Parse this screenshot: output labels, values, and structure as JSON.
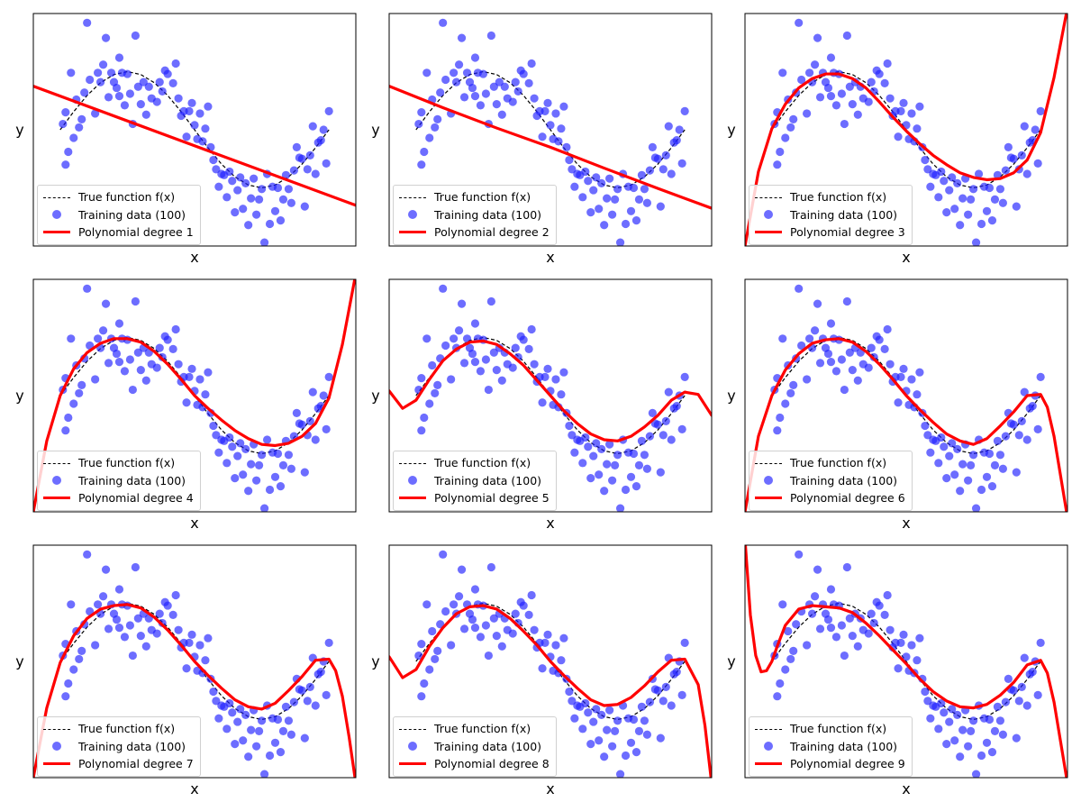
{
  "chart_data": [
    {
      "type": "scatter",
      "degree": 1,
      "title": "",
      "xlabel": "x",
      "ylabel": "y",
      "legend": {
        "true_function": "True function f(x)",
        "training_data": "Training data (100)",
        "fit": "Polynomial degree 1"
      },
      "fit_curve": {
        "x": [
          -0.1,
          1.1
        ],
        "y": [
          0.75,
          -1.3
        ]
      }
    },
    {
      "type": "scatter",
      "degree": 2,
      "title": "",
      "xlabel": "x",
      "ylabel": "y",
      "legend": {
        "true_function": "True function f(x)",
        "training_data": "Training data (100)",
        "fit": "Polynomial degree 2"
      },
      "fit_curve": {
        "x": [
          -0.1,
          0.1,
          0.3,
          0.5,
          0.7,
          0.9,
          1.1
        ],
        "y": [
          0.75,
          0.38,
          0.03,
          -0.3,
          -0.66,
          -1.01,
          -1.35
        ]
      }
    },
    {
      "type": "scatter",
      "degree": 3,
      "title": "",
      "xlabel": "x",
      "ylabel": "y",
      "legend": {
        "true_function": "True function f(x)",
        "training_data": "Training data (100)",
        "fit": "Polynomial degree 3"
      },
      "fit_curve": {
        "x": [
          -0.1,
          -0.05,
          0,
          0.05,
          0.1,
          0.15,
          0.2,
          0.25,
          0.3,
          0.35,
          0.4,
          0.45,
          0.5,
          0.55,
          0.6,
          0.65,
          0.7,
          0.75,
          0.8,
          0.85,
          0.9,
          0.95,
          1.0,
          1.05,
          1.1
        ],
        "y": [
          -2.0,
          -0.72,
          0.02,
          0.44,
          0.72,
          0.88,
          0.96,
          0.96,
          0.88,
          0.72,
          0.48,
          0.22,
          -0.02,
          -0.24,
          -0.44,
          -0.6,
          -0.74,
          -0.82,
          -0.86,
          -0.84,
          -0.74,
          -0.52,
          -0.05,
          0.9,
          2.1
        ]
      }
    },
    {
      "type": "scatter",
      "degree": 4,
      "title": "",
      "xlabel": "x",
      "ylabel": "y",
      "legend": {
        "true_function": "True function f(x)",
        "training_data": "Training data (100)",
        "fit": "Polynomial degree 4"
      },
      "fit_curve": {
        "x": [
          -0.1,
          -0.05,
          0,
          0.05,
          0.1,
          0.15,
          0.2,
          0.25,
          0.3,
          0.35,
          0.4,
          0.45,
          0.5,
          0.55,
          0.6,
          0.65,
          0.7,
          0.75,
          0.8,
          0.85,
          0.9,
          0.95,
          1.0,
          1.05,
          1.1
        ],
        "y": [
          -2.0,
          -0.78,
          0.0,
          0.46,
          0.74,
          0.9,
          0.98,
          0.98,
          0.92,
          0.76,
          0.54,
          0.28,
          0.0,
          -0.22,
          -0.42,
          -0.6,
          -0.74,
          -0.84,
          -0.86,
          -0.82,
          -0.7,
          -0.48,
          -0.04,
          0.88,
          2.1
        ]
      }
    },
    {
      "type": "scatter",
      "degree": 5,
      "title": "",
      "xlabel": "x",
      "ylabel": "y",
      "legend": {
        "true_function": "True function f(x)",
        "training_data": "Training data (100)",
        "fit": "Polynomial degree 5"
      },
      "fit_curve": {
        "x": [
          -0.1,
          -0.05,
          0,
          0.05,
          0.1,
          0.15,
          0.2,
          0.25,
          0.3,
          0.35,
          0.4,
          0.45,
          0.5,
          0.55,
          0.6,
          0.65,
          0.7,
          0.75,
          0.8,
          0.85,
          0.9,
          0.95,
          1.0,
          1.05,
          1.1
        ],
        "y": [
          0.08,
          -0.22,
          -0.08,
          0.28,
          0.6,
          0.8,
          0.92,
          0.94,
          0.88,
          0.72,
          0.52,
          0.26,
          0.0,
          -0.26,
          -0.48,
          -0.66,
          -0.76,
          -0.78,
          -0.7,
          -0.54,
          -0.34,
          -0.08,
          0.06,
          0.02,
          -0.34
        ]
      }
    },
    {
      "type": "scatter",
      "degree": 6,
      "title": "",
      "xlabel": "x",
      "ylabel": "y",
      "legend": {
        "true_function": "True function f(x)",
        "training_data": "Training data (100)",
        "fit": "Polynomial degree 6"
      },
      "fit_curve": {
        "x": [
          -0.1,
          -0.05,
          0,
          0.05,
          0.1,
          0.15,
          0.2,
          0.25,
          0.3,
          0.35,
          0.4,
          0.45,
          0.5,
          0.55,
          0.6,
          0.65,
          0.7,
          0.75,
          0.8,
          0.85,
          0.9,
          0.95,
          1.0,
          1.025,
          1.05,
          1.075,
          1.1
        ],
        "y": [
          -2.0,
          -0.7,
          0.0,
          0.44,
          0.72,
          0.9,
          0.96,
          0.98,
          0.92,
          0.76,
          0.54,
          0.28,
          0.0,
          -0.24,
          -0.46,
          -0.66,
          -0.78,
          -0.84,
          -0.74,
          -0.52,
          -0.28,
          0.0,
          0.02,
          -0.2,
          -0.7,
          -1.4,
          -2.1
        ]
      }
    },
    {
      "type": "scatter",
      "degree": 7,
      "title": "",
      "xlabel": "x",
      "ylabel": "y",
      "legend": {
        "true_function": "True function f(x)",
        "training_data": "Training data (100)",
        "fit": "Polynomial degree 7"
      },
      "fit_curve": {
        "x": [
          -0.1,
          -0.05,
          0,
          0.05,
          0.1,
          0.15,
          0.2,
          0.25,
          0.3,
          0.35,
          0.4,
          0.45,
          0.5,
          0.55,
          0.6,
          0.65,
          0.7,
          0.75,
          0.8,
          0.85,
          0.9,
          0.95,
          1.0,
          1.025,
          1.05,
          1.075,
          1.1
        ],
        "y": [
          -2.0,
          -0.8,
          -0.02,
          0.44,
          0.74,
          0.9,
          0.96,
          0.98,
          0.92,
          0.76,
          0.54,
          0.28,
          0.0,
          -0.24,
          -0.46,
          -0.66,
          -0.78,
          -0.82,
          -0.72,
          -0.5,
          -0.26,
          0.02,
          0.04,
          -0.16,
          -0.6,
          -1.3,
          -2.1
        ]
      }
    },
    {
      "type": "scatter",
      "degree": 8,
      "title": "",
      "xlabel": "x",
      "ylabel": "y",
      "legend": {
        "true_function": "True function f(x)",
        "training_data": "Training data (100)",
        "fit": "Polynomial degree 8"
      },
      "fit_curve": {
        "x": [
          -0.1,
          -0.05,
          0,
          0.05,
          0.1,
          0.15,
          0.2,
          0.25,
          0.3,
          0.35,
          0.4,
          0.45,
          0.5,
          0.55,
          0.6,
          0.65,
          0.7,
          0.75,
          0.8,
          0.85,
          0.9,
          0.95,
          1.0,
          1.05,
          1.075,
          1.1
        ],
        "y": [
          0.08,
          -0.28,
          -0.14,
          0.26,
          0.58,
          0.82,
          0.94,
          0.96,
          0.9,
          0.74,
          0.52,
          0.28,
          0.0,
          -0.24,
          -0.46,
          -0.66,
          -0.76,
          -0.74,
          -0.62,
          -0.42,
          -0.18,
          0.02,
          0.04,
          -0.4,
          -1.1,
          -2.1
        ]
      }
    },
    {
      "type": "scatter",
      "degree": 9,
      "title": "",
      "xlabel": "x",
      "ylabel": "y",
      "legend": {
        "true_function": "True function f(x)",
        "training_data": "Training data (100)",
        "fit": "Polynomial degree 9"
      },
      "fit_curve": {
        "x": [
          -0.1,
          -0.08,
          -0.06,
          -0.04,
          -0.02,
          0,
          0.02,
          0.05,
          0.1,
          0.15,
          0.2,
          0.25,
          0.3,
          0.35,
          0.4,
          0.45,
          0.5,
          0.55,
          0.6,
          0.65,
          0.7,
          0.75,
          0.8,
          0.85,
          0.9,
          0.95,
          1.0,
          1.025,
          1.05,
          1.075,
          1.1
        ],
        "y": [
          2.1,
          0.8,
          0.1,
          -0.18,
          -0.16,
          0.0,
          0.26,
          0.62,
          0.9,
          0.96,
          0.94,
          0.92,
          0.84,
          0.66,
          0.44,
          0.2,
          -0.04,
          -0.3,
          -0.52,
          -0.68,
          -0.78,
          -0.8,
          -0.74,
          -0.58,
          -0.36,
          -0.06,
          0.02,
          -0.2,
          -0.7,
          -1.4,
          -2.1
        ]
      }
    }
  ],
  "shared_axes": {
    "xlim": [
      -0.1,
      1.1
    ],
    "ylim": [
      -2.0,
      2.0
    ],
    "xticks": [],
    "yticks": []
  },
  "true_function": {
    "x": [
      0,
      0.05,
      0.1,
      0.15,
      0.2,
      0.25,
      0.3,
      0.35,
      0.4,
      0.45,
      0.5,
      0.55,
      0.6,
      0.65,
      0.7,
      0.75,
      0.8,
      0.85,
      0.9,
      0.95,
      1.0
    ],
    "y": [
      0.0,
      0.31,
      0.59,
      0.81,
      0.95,
      1.0,
      0.95,
      0.81,
      0.59,
      0.31,
      0.0,
      -0.31,
      -0.59,
      -0.81,
      -0.95,
      -1.0,
      -0.95,
      -0.81,
      -0.59,
      -0.31,
      0.0
    ]
  },
  "training_data": {
    "x": [
      0.01,
      0.02,
      0.02,
      0.03,
      0.04,
      0.05,
      0.06,
      0.07,
      0.08,
      0.09,
      0.1,
      0.11,
      0.13,
      0.14,
      0.15,
      0.16,
      0.17,
      0.18,
      0.19,
      0.2,
      0.21,
      0.22,
      0.22,
      0.23,
      0.24,
      0.25,
      0.26,
      0.27,
      0.28,
      0.29,
      0.3,
      0.31,
      0.32,
      0.33,
      0.34,
      0.35,
      0.36,
      0.37,
      0.38,
      0.39,
      0.4,
      0.42,
      0.43,
      0.44,
      0.45,
      0.46,
      0.47,
      0.48,
      0.49,
      0.5,
      0.51,
      0.52,
      0.53,
      0.54,
      0.55,
      0.56,
      0.57,
      0.58,
      0.59,
      0.6,
      0.61,
      0.62,
      0.63,
      0.64,
      0.65,
      0.66,
      0.67,
      0.68,
      0.69,
      0.7,
      0.71,
      0.72,
      0.73,
      0.74,
      0.75,
      0.76,
      0.77,
      0.78,
      0.79,
      0.8,
      0.81,
      0.82,
      0.83,
      0.84,
      0.85,
      0.86,
      0.87,
      0.88,
      0.89,
      0.9,
      0.91,
      0.92,
      0.93,
      0.94,
      0.95,
      0.96,
      0.97,
      0.98,
      0.99,
      1.0
    ],
    "y": [
      0.1,
      0.3,
      -0.6,
      -0.38,
      0.98,
      -0.14,
      0.52,
      0.04,
      0.18,
      0.64,
      1.84,
      0.86,
      0.28,
      0.98,
      0.82,
      1.12,
      1.58,
      0.56,
      0.98,
      0.82,
      0.72,
      1.24,
      0.58,
      0.98,
      0.42,
      0.96,
      0.62,
      0.1,
      1.62,
      0.74,
      0.44,
      0.82,
      0.26,
      0.74,
      0.54,
      2.12,
      0.48,
      0.82,
      0.66,
      1.02,
      0.96,
      0.8,
      1.14,
      0.54,
      0.24,
      0.32,
      -0.12,
      0.32,
      0.46,
      0.08,
      -0.16,
      0.28,
      -0.2,
      0.02,
      0.4,
      -0.3,
      -0.52,
      -0.68,
      -0.98,
      -0.76,
      -0.78,
      -1.16,
      -0.72,
      -0.88,
      -1.42,
      -1.04,
      -0.82,
      -1.36,
      -0.92,
      -1.64,
      -1.18,
      -0.84,
      -1.46,
      -1.2,
      -1.02,
      -1.94,
      -0.76,
      -1.62,
      -0.98,
      -1.4,
      -1.0,
      -1.56,
      -1.2,
      -0.78,
      -1.02,
      -1.26,
      -0.7,
      -0.3,
      -0.48,
      -0.5,
      -1.32,
      -0.68,
      -0.44,
      0.06,
      -0.76,
      -0.22,
      -0.18,
      0.0,
      -0.58,
      0.32
    ]
  },
  "colors": {
    "true_function": "#000000",
    "training_data": "#1f1fff",
    "fit": "#ff0000",
    "axes": "#000000"
  }
}
